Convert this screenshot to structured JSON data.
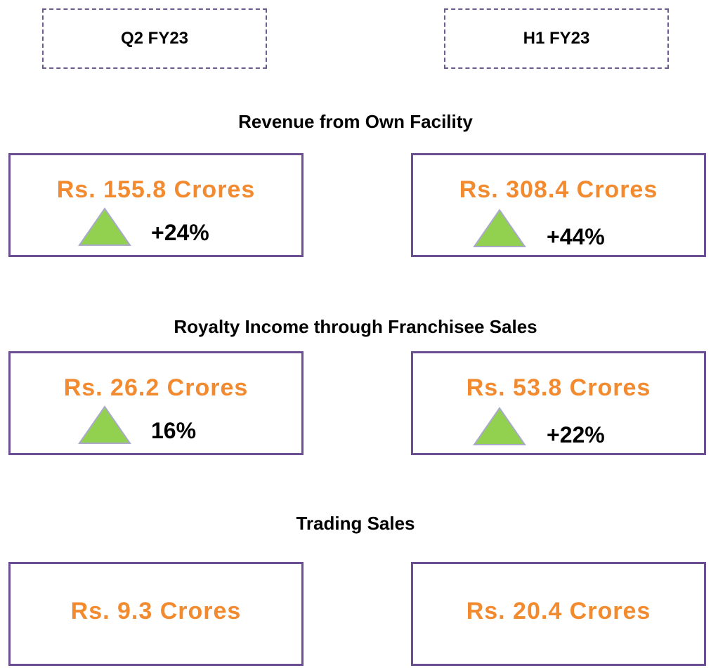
{
  "periods": [
    "Q2 FY23",
    "H1 FY23"
  ],
  "sections": [
    {
      "title": "Revenue from Own Facility",
      "q2": {
        "amount": "Rs. 155.8 Crores",
        "growth": "+24%"
      },
      "h1": {
        "amount": "Rs. 308.4 Crores",
        "growth": "+44%"
      }
    },
    {
      "title": "Royalty Income through Franchisee Sales",
      "q2": {
        "amount": "Rs. 26.2 Crores",
        "growth": "16%"
      },
      "h1": {
        "amount": "Rs. 53.8 Crores",
        "growth": "+22%"
      }
    },
    {
      "title": "Trading Sales",
      "q2": {
        "amount": "Rs. 9.3 Crores"
      },
      "h1": {
        "amount": "Rs. 20.4 Crores"
      }
    }
  ]
}
